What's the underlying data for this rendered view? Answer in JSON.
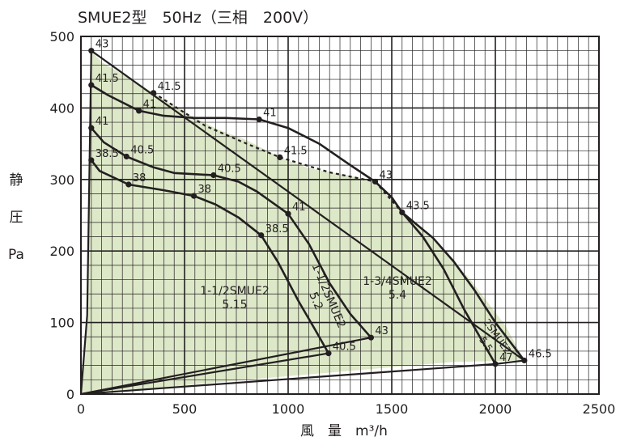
{
  "chart_data": {
    "type": "line",
    "title": "SMUE2型　50Hz（三相　200V）",
    "xlabel": "風　量　m³/h",
    "ylabel": [
      "静",
      "圧",
      "Pa"
    ],
    "xlim": [
      0,
      2500
    ],
    "ylim": [
      0,
      500
    ],
    "x_ticks": [
      "0",
      "500",
      "1000",
      "1500",
      "2000",
      "2500"
    ],
    "y_ticks": [
      "100",
      "200",
      "300",
      "400",
      "500"
    ],
    "grid": true,
    "shaded_region": {
      "color": "#dde8c8",
      "polygon": [
        [
          0,
          0
        ],
        [
          30,
          110
        ],
        [
          50,
          480
        ],
        [
          100,
          464
        ],
        [
          200,
          447
        ],
        [
          350,
          421
        ],
        [
          500,
          394
        ],
        [
          660,
          370
        ],
        [
          800,
          355
        ],
        [
          960,
          331
        ],
        [
          1100,
          316
        ],
        [
          1300,
          305
        ],
        [
          1420,
          297
        ],
        [
          1550,
          254
        ],
        [
          1700,
          215
        ],
        [
          1880,
          160
        ],
        [
          2050,
          95
        ],
        [
          2140,
          47
        ],
        [
          1800,
          45
        ],
        [
          1200,
          30
        ],
        [
          600,
          15
        ],
        [
          100,
          1
        ]
      ]
    },
    "curves": [
      {
        "name": "1-1/2SMUE2",
        "label_lines": [
          "1-1/2SMUE2",
          "5.15"
        ],
        "points": [
          [
            50,
            327
          ],
          [
            90,
            312
          ],
          [
            230,
            293
          ],
          [
            400,
            285
          ],
          [
            545,
            277
          ],
          [
            650,
            265
          ],
          [
            760,
            247
          ],
          [
            870,
            222
          ],
          [
            950,
            185
          ],
          [
            1050,
            130
          ],
          [
            1130,
            90
          ],
          [
            1195,
            57
          ]
        ]
      },
      {
        "name": "1-1/2SMUE2",
        "label_lines": [
          "1-1/2SMUE2",
          "5.2"
        ],
        "points": [
          [
            50,
            372
          ],
          [
            110,
            352
          ],
          [
            220,
            332
          ],
          [
            350,
            317
          ],
          [
            450,
            309
          ],
          [
            640,
            306
          ],
          [
            760,
            297
          ],
          [
            850,
            283
          ],
          [
            1000,
            252
          ],
          [
            1100,
            210
          ],
          [
            1200,
            155
          ],
          [
            1300,
            112
          ],
          [
            1400,
            79
          ]
        ]
      },
      {
        "name": "1-3/4SMUE2",
        "label_lines": [
          "1-3/4SMUE2",
          "5.4"
        ],
        "points": [
          [
            50,
            432
          ],
          [
            130,
            418
          ],
          [
            280,
            396
          ],
          [
            400,
            389
          ],
          [
            550,
            386
          ],
          [
            700,
            386
          ],
          [
            860,
            384
          ],
          [
            1000,
            372
          ],
          [
            1150,
            350
          ],
          [
            1300,
            320
          ],
          [
            1420,
            297
          ],
          [
            1500,
            275
          ],
          [
            1550,
            254
          ],
          [
            1650,
            220
          ],
          [
            1750,
            175
          ],
          [
            1850,
            118
          ],
          [
            2000,
            42
          ]
        ]
      },
      {
        "name": "2SMUE2",
        "label_lines": [
          "2SMUE2",
          "5.5"
        ],
        "points": [
          [
            1550,
            254
          ],
          [
            1700,
            218
          ],
          [
            1800,
            185
          ],
          [
            1900,
            145
          ],
          [
            2000,
            100
          ],
          [
            2140,
            47
          ]
        ]
      }
    ],
    "system_lines": [
      {
        "style": "solid",
        "points": [
          [
            50,
            480
          ],
          [
            2140,
            47
          ]
        ]
      },
      {
        "style": "solid",
        "points": [
          [
            0,
            0
          ],
          [
            30,
            110
          ],
          [
            50,
            480
          ]
        ]
      },
      {
        "style": "solid",
        "points": [
          [
            0,
            0
          ],
          [
            1400,
            79
          ]
        ]
      },
      {
        "style": "solid",
        "points": [
          [
            0,
            0
          ],
          [
            1195,
            57
          ]
        ]
      },
      {
        "style": "solid",
        "points": [
          [
            0,
            0
          ],
          [
            2000,
            42
          ],
          [
            2140,
            47
          ]
        ]
      },
      {
        "style": "dashed",
        "points": [
          [
            350,
            421
          ],
          [
            600,
            375
          ],
          [
            800,
            350
          ],
          [
            960,
            331
          ],
          [
            1200,
            310
          ],
          [
            1420,
            297
          ]
        ]
      },
      {
        "style": "dashed",
        "points": [
          [
            1420,
            297
          ],
          [
            1550,
            254
          ]
        ]
      }
    ],
    "markers": [
      {
        "x": 50,
        "y": 480,
        "label": "43"
      },
      {
        "x": 350,
        "y": 421,
        "label": "41.5"
      },
      {
        "x": 50,
        "y": 432,
        "label": "41.5"
      },
      {
        "x": 280,
        "y": 396,
        "label": "41"
      },
      {
        "x": 860,
        "y": 384,
        "label": "41"
      },
      {
        "x": 50,
        "y": 372,
        "label": "41"
      },
      {
        "x": 960,
        "y": 331,
        "label": "41.5"
      },
      {
        "x": 220,
        "y": 332,
        "label": "40.5"
      },
      {
        "x": 640,
        "y": 306,
        "label": "40.5"
      },
      {
        "x": 50,
        "y": 327,
        "label": "38.5"
      },
      {
        "x": 230,
        "y": 293,
        "label": "38"
      },
      {
        "x": 545,
        "y": 277,
        "label": "38"
      },
      {
        "x": 1420,
        "y": 297,
        "label": "43"
      },
      {
        "x": 1000,
        "y": 252,
        "label": "41"
      },
      {
        "x": 1550,
        "y": 254,
        "label": "43.5"
      },
      {
        "x": 870,
        "y": 222,
        "label": "38.5"
      },
      {
        "x": 1400,
        "y": 79,
        "label": "43"
      },
      {
        "x": 1195,
        "y": 57,
        "label": "40.5"
      },
      {
        "x": 2140,
        "y": 47,
        "label": "46.5"
      },
      {
        "x": 2000,
        "y": 42,
        "label": "47"
      }
    ]
  }
}
